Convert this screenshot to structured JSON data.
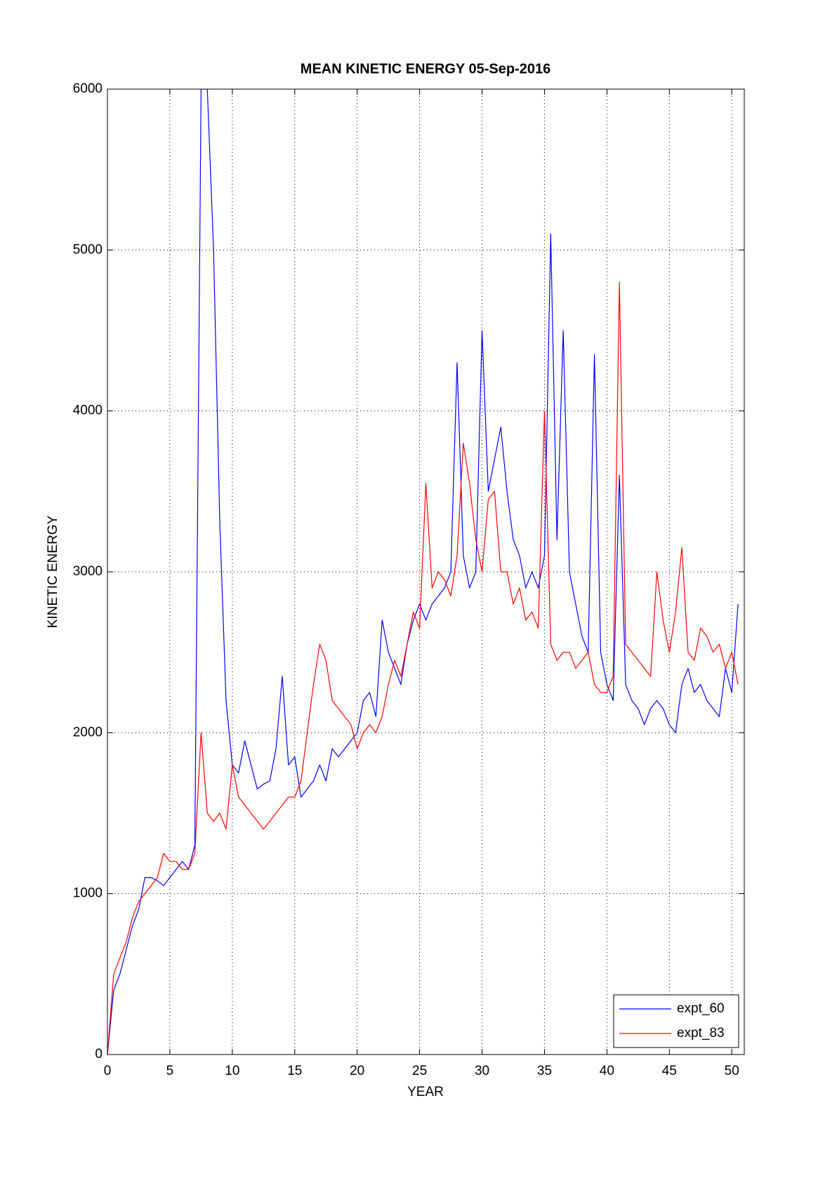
{
  "chart_data": {
    "type": "line",
    "title": "MEAN KINETIC ENERGY 05-Sep-2016",
    "x_label": "YEAR",
    "y_label": "KINETIC ENERGY",
    "xlim": [
      0,
      51
    ],
    "ylim": [
      0,
      6000
    ],
    "xticks": [
      0,
      5,
      10,
      15,
      20,
      25,
      30,
      35,
      40,
      45,
      50
    ],
    "yticks": [
      0,
      1000,
      2000,
      3000,
      4000,
      5000,
      6000
    ],
    "grid": true,
    "legend_position": "lower-right",
    "x": [
      0,
      0.5,
      1,
      1.5,
      2,
      2.5,
      3,
      3.5,
      4,
      4.5,
      5,
      5.5,
      6,
      6.5,
      7,
      7.5,
      8,
      8.5,
      9,
      9.5,
      10,
      10.5,
      11,
      11.5,
      12,
      12.5,
      13,
      13.5,
      14,
      14.5,
      15,
      15.5,
      16,
      16.5,
      17,
      17.5,
      18,
      18.5,
      19,
      19.5,
      20,
      20.5,
      21,
      21.5,
      22,
      22.5,
      23,
      23.5,
      24,
      24.5,
      25,
      25.5,
      26,
      26.5,
      27,
      27.5,
      28,
      28.5,
      29,
      29.5,
      30,
      30.5,
      31,
      31.5,
      32,
      32.5,
      33,
      33.5,
      34,
      34.5,
      35,
      35.5,
      36,
      36.5,
      37,
      37.5,
      38,
      38.5,
      39,
      39.5,
      40,
      40.5,
      41,
      41.5,
      42,
      42.5,
      43,
      43.5,
      44,
      44.5,
      45,
      45.5,
      46,
      46.5,
      47,
      47.5,
      48,
      48.5,
      49,
      49.5,
      50,
      50.5
    ],
    "series": [
      {
        "name": "expt_60",
        "color": "#0000ff",
        "values": [
          0,
          400,
          500,
          650,
          800,
          900,
          1100,
          1100,
          1080,
          1050,
          1100,
          1150,
          1200,
          1150,
          1300,
          6000,
          6000,
          5000,
          3300,
          2200,
          1800,
          1750,
          1950,
          1800,
          1650,
          1680,
          1700,
          1900,
          2350,
          1800,
          1850,
          1600,
          1650,
          1700,
          1800,
          1700,
          1900,
          1850,
          1900,
          1950,
          2000,
          2200,
          2250,
          2100,
          2700,
          2500,
          2400,
          2300,
          2550,
          2700,
          2800,
          2700,
          2800,
          2850,
          2900,
          3000,
          4300,
          3100,
          2900,
          3000,
          4500,
          3500,
          3700,
          3900,
          3500,
          3200,
          3100,
          2900,
          3000,
          2900,
          3100,
          5100,
          3200,
          4500,
          3000,
          2800,
          2600,
          2500,
          4350,
          2500,
          2300,
          2200,
          3600,
          2300,
          2200,
          2150,
          2050,
          2150,
          2200,
          2150,
          2050,
          2000,
          2300,
          2400,
          2250,
          2300,
          2200,
          2150,
          2100,
          2400,
          2250,
          2800
        ]
      },
      {
        "name": "expt_83",
        "color": "#ff0000",
        "values": [
          0,
          500,
          600,
          700,
          850,
          950,
          1000,
          1050,
          1100,
          1250,
          1200,
          1200,
          1150,
          1150,
          1250,
          2000,
          1500,
          1450,
          1500,
          1400,
          1800,
          1600,
          1550,
          1500,
          1450,
          1400,
          1450,
          1500,
          1550,
          1600,
          1600,
          1700,
          2000,
          2300,
          2550,
          2450,
          2200,
          2150,
          2100,
          2050,
          1900,
          2000,
          2050,
          2000,
          2100,
          2300,
          2450,
          2350,
          2550,
          2750,
          2650,
          3550,
          2900,
          3000,
          2950,
          2850,
          3100,
          3800,
          3550,
          3200,
          3000,
          3450,
          3500,
          3000,
          3000,
          2800,
          2900,
          2700,
          2750,
          2650,
          4000,
          2550,
          2450,
          2500,
          2500,
          2400,
          2450,
          2500,
          2300,
          2250,
          2250,
          2350,
          4800,
          2550,
          2500,
          2450,
          2400,
          2350,
          3000,
          2700,
          2500,
          2750,
          3150,
          2500,
          2450,
          2650,
          2600,
          2500,
          2550,
          2400,
          2500,
          2300
        ]
      }
    ]
  }
}
